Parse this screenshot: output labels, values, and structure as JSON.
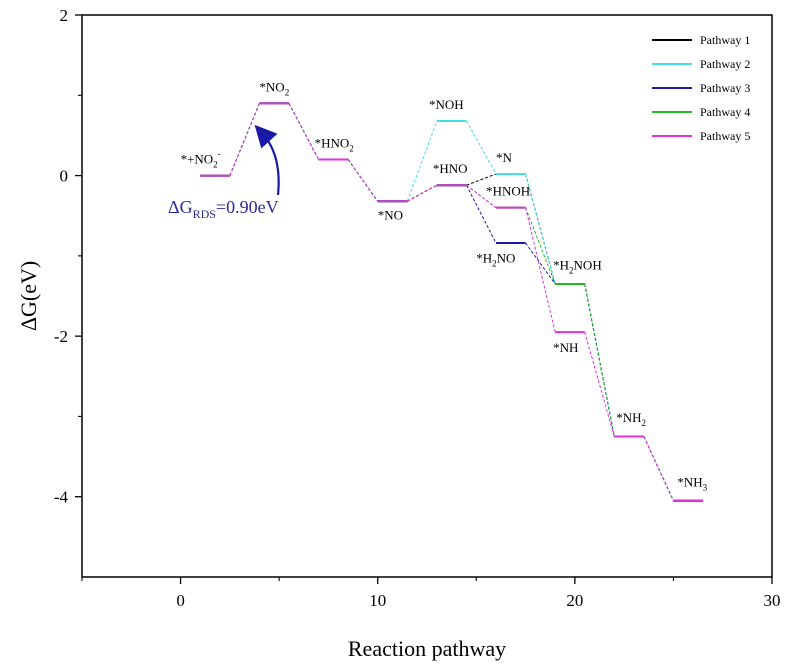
{
  "chart_data": {
    "type": "line",
    "title": "",
    "xlabel": "Reaction pathway",
    "ylabel": "ΔG(eV)",
    "xlim": [
      -5,
      30
    ],
    "ylim": [
      -5,
      2
    ],
    "xticks": [
      0,
      10,
      20,
      30
    ],
    "yticks": [
      2,
      0,
      -2,
      -4
    ],
    "ytick_labels": [
      "2",
      "0",
      "-2",
      "-4"
    ],
    "grid": false,
    "legend_position": "top-right",
    "series": [
      {
        "name": "Pathway 1",
        "color": "#000000",
        "levels": [
          {
            "x": [
              1,
              2.5
            ],
            "y": 0
          },
          {
            "x": [
              4,
              5.5
            ],
            "y": 0.9
          },
          {
            "x": [
              7,
              8.5
            ],
            "y": 0.2
          },
          {
            "x": [
              10,
              11.5
            ],
            "y": -0.32
          },
          {
            "x": [
              13,
              14.5
            ],
            "y": -0.12
          },
          {
            "x": [
              16,
              17.5
            ],
            "y": 0.02
          },
          {
            "x": [
              19,
              20.5
            ],
            "y": -1.35
          },
          {
            "x": [
              22,
              23.5
            ],
            "y": -3.25
          },
          {
            "x": [
              25,
              26.5
            ],
            "y": -4.05
          }
        ]
      },
      {
        "name": "Pathway 2",
        "color": "#40e0e0",
        "levels": [
          {
            "x": [
              1,
              2.5
            ],
            "y": 0
          },
          {
            "x": [
              4,
              5.5
            ],
            "y": 0.9
          },
          {
            "x": [
              7,
              8.5
            ],
            "y": 0.2
          },
          {
            "x": [
              10,
              11.5
            ],
            "y": -0.32
          },
          {
            "x": [
              13,
              14.5
            ],
            "y": 0.68
          },
          {
            "x": [
              16,
              17.5
            ],
            "y": 0.02
          },
          {
            "x": [
              19,
              20.5
            ],
            "y": -1.35
          },
          {
            "x": [
              22,
              23.5
            ],
            "y": -3.25
          },
          {
            "x": [
              25,
              26.5
            ],
            "y": -4.05
          }
        ]
      },
      {
        "name": "Pathway 3",
        "color": "#1a1aa8",
        "levels": [
          {
            "x": [
              1,
              2.5
            ],
            "y": 0
          },
          {
            "x": [
              4,
              5.5
            ],
            "y": 0.9
          },
          {
            "x": [
              7,
              8.5
            ],
            "y": 0.2
          },
          {
            "x": [
              10,
              11.5
            ],
            "y": -0.32
          },
          {
            "x": [
              13,
              14.5
            ],
            "y": -0.12
          },
          {
            "x": [
              16,
              17.5
            ],
            "y": -0.84
          },
          {
            "x": [
              19,
              20.5
            ],
            "y": -1.35
          },
          {
            "x": [
              22,
              23.5
            ],
            "y": -3.25
          },
          {
            "x": [
              25,
              26.5
            ],
            "y": -4.05
          }
        ]
      },
      {
        "name": "Pathway 4",
        "color": "#22bb22",
        "levels": [
          {
            "x": [
              1,
              2.5
            ],
            "y": 0
          },
          {
            "x": [
              4,
              5.5
            ],
            "y": 0.9
          },
          {
            "x": [
              7,
              8.5
            ],
            "y": 0.2
          },
          {
            "x": [
              10,
              11.5
            ],
            "y": -0.32
          },
          {
            "x": [
              13,
              14.5
            ],
            "y": -0.12
          },
          {
            "x": [
              16,
              17.5
            ],
            "y": -0.4
          },
          {
            "x": [
              19,
              20.5
            ],
            "y": -1.35
          },
          {
            "x": [
              22,
              23.5
            ],
            "y": -3.25
          },
          {
            "x": [
              25,
              26.5
            ],
            "y": -4.05
          }
        ]
      },
      {
        "name": "Pathway 5",
        "color": "#e030e0",
        "levels": [
          {
            "x": [
              1,
              2.5
            ],
            "y": 0
          },
          {
            "x": [
              4,
              5.5
            ],
            "y": 0.9
          },
          {
            "x": [
              7,
              8.5
            ],
            "y": 0.2
          },
          {
            "x": [
              10,
              11.5
            ],
            "y": -0.32
          },
          {
            "x": [
              13,
              14.5
            ],
            "y": -0.12
          },
          {
            "x": [
              16,
              17.5
            ],
            "y": -0.4
          },
          {
            "x": [
              19,
              20.5
            ],
            "y": -1.95
          },
          {
            "x": [
              22,
              23.5
            ],
            "y": -3.25
          },
          {
            "x": [
              25,
              26.5
            ],
            "y": -4.05
          }
        ]
      }
    ],
    "annotations": [
      {
        "main": "*+NO",
        "sub": "2",
        "sup": "-",
        "x": 0,
        "y": 0.15
      },
      {
        "main": "*NO",
        "sub": "2",
        "x": 4.0,
        "y": 1.05
      },
      {
        "main": "*HNO",
        "sub": "2",
        "x": 6.8,
        "y": 0.35
      },
      {
        "main": "*NO",
        "x": 10.0,
        "y": -0.55
      },
      {
        "main": "*NOH",
        "x": 12.6,
        "y": 0.83
      },
      {
        "main": "*HNO",
        "x": 12.8,
        "y": 0.03
      },
      {
        "main": "*N",
        "x": 16.0,
        "y": 0.17
      },
      {
        "main": "*HNOH",
        "x": 15.5,
        "y": -0.25
      },
      {
        "main": "*H",
        "sub": "2",
        "tail": "NO",
        "x": 15.0,
        "y": -1.08
      },
      {
        "main": "*H",
        "sub": "2",
        "tail": "NOH",
        "x": 18.9,
        "y": -1.17
      },
      {
        "main": "*NH",
        "x": 18.9,
        "y": -2.2
      },
      {
        "main": "*NH",
        "sub": "2",
        "x": 22.1,
        "y": -3.07
      },
      {
        "main": "*NH",
        "sub": "3",
        "x": 25.2,
        "y": -3.87
      }
    ],
    "rds_label": {
      "prefix": "ΔG",
      "sub": "RDS",
      "value": "=0.90eV"
    }
  }
}
